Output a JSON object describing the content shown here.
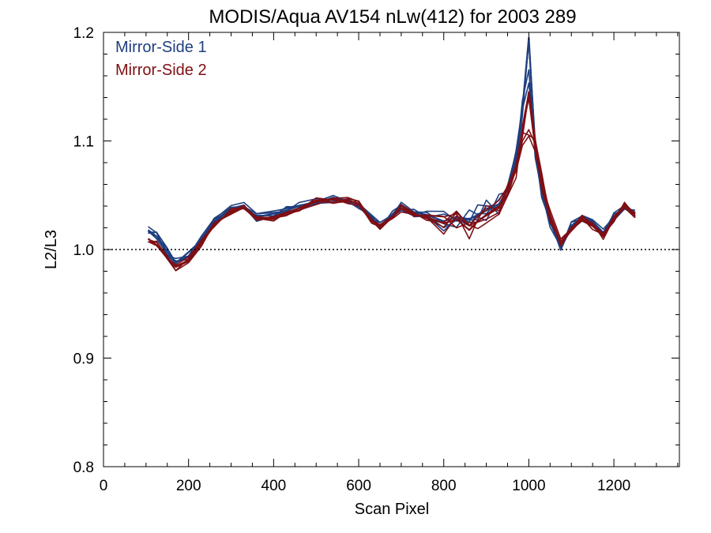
{
  "chart_data": {
    "type": "line",
    "title": "MODIS/Aqua AV154 nLw(412) for 2003 289",
    "xlabel": "Scan Pixel",
    "ylabel": "L2/L3",
    "xlim": [
      0,
      1354
    ],
    "ylim": [
      0.8,
      1.2
    ],
    "x_ticks": [
      "0",
      "200",
      "400",
      "600",
      "800",
      "1000",
      "1200"
    ],
    "y_ticks": [
      "0.8",
      "0.9",
      "1.0",
      "1.1",
      "1.2"
    ],
    "reference_line": {
      "y": 1.0,
      "style": "dotted"
    },
    "legend_position": "top-left",
    "colors": {
      "Mirror-Side 1": "#1f3f7f",
      "Mirror-Side 2": "#7f0f14"
    },
    "x": [
      105,
      125,
      150,
      170,
      200,
      230,
      260,
      300,
      330,
      360,
      400,
      430,
      460,
      500,
      540,
      575,
      600,
      630,
      650,
      680,
      700,
      730,
      760,
      800,
      830,
      860,
      880,
      900,
      930,
      950,
      970,
      985,
      1000,
      1015,
      1030,
      1050,
      1075,
      1100,
      1125,
      1150,
      1175,
      1200,
      1225,
      1250
    ],
    "series": [
      {
        "name": "Mirror-Side 1",
        "values": [
          1.018,
          1.012,
          0.998,
          0.988,
          0.994,
          1.01,
          1.026,
          1.038,
          1.04,
          1.03,
          1.033,
          1.036,
          1.04,
          1.044,
          1.046,
          1.046,
          1.041,
          1.03,
          1.022,
          1.032,
          1.04,
          1.034,
          1.032,
          1.026,
          1.03,
          1.028,
          1.032,
          1.036,
          1.042,
          1.055,
          1.085,
          1.13,
          1.195,
          1.09,
          1.058,
          1.03,
          1.0,
          1.022,
          1.03,
          1.025,
          1.015,
          1.03,
          1.04,
          1.034
        ]
      },
      {
        "name": "Mirror-Side 2",
        "values": [
          1.01,
          1.004,
          0.992,
          0.984,
          0.99,
          1.006,
          1.022,
          1.036,
          1.038,
          1.028,
          1.03,
          1.034,
          1.038,
          1.044,
          1.046,
          1.045,
          1.042,
          1.028,
          1.02,
          1.03,
          1.038,
          1.032,
          1.03,
          1.024,
          1.028,
          1.018,
          1.026,
          1.032,
          1.04,
          1.05,
          1.075,
          1.105,
          1.145,
          1.1,
          1.062,
          1.032,
          1.006,
          1.02,
          1.028,
          1.022,
          1.012,
          1.028,
          1.042,
          1.03
        ]
      }
    ]
  }
}
